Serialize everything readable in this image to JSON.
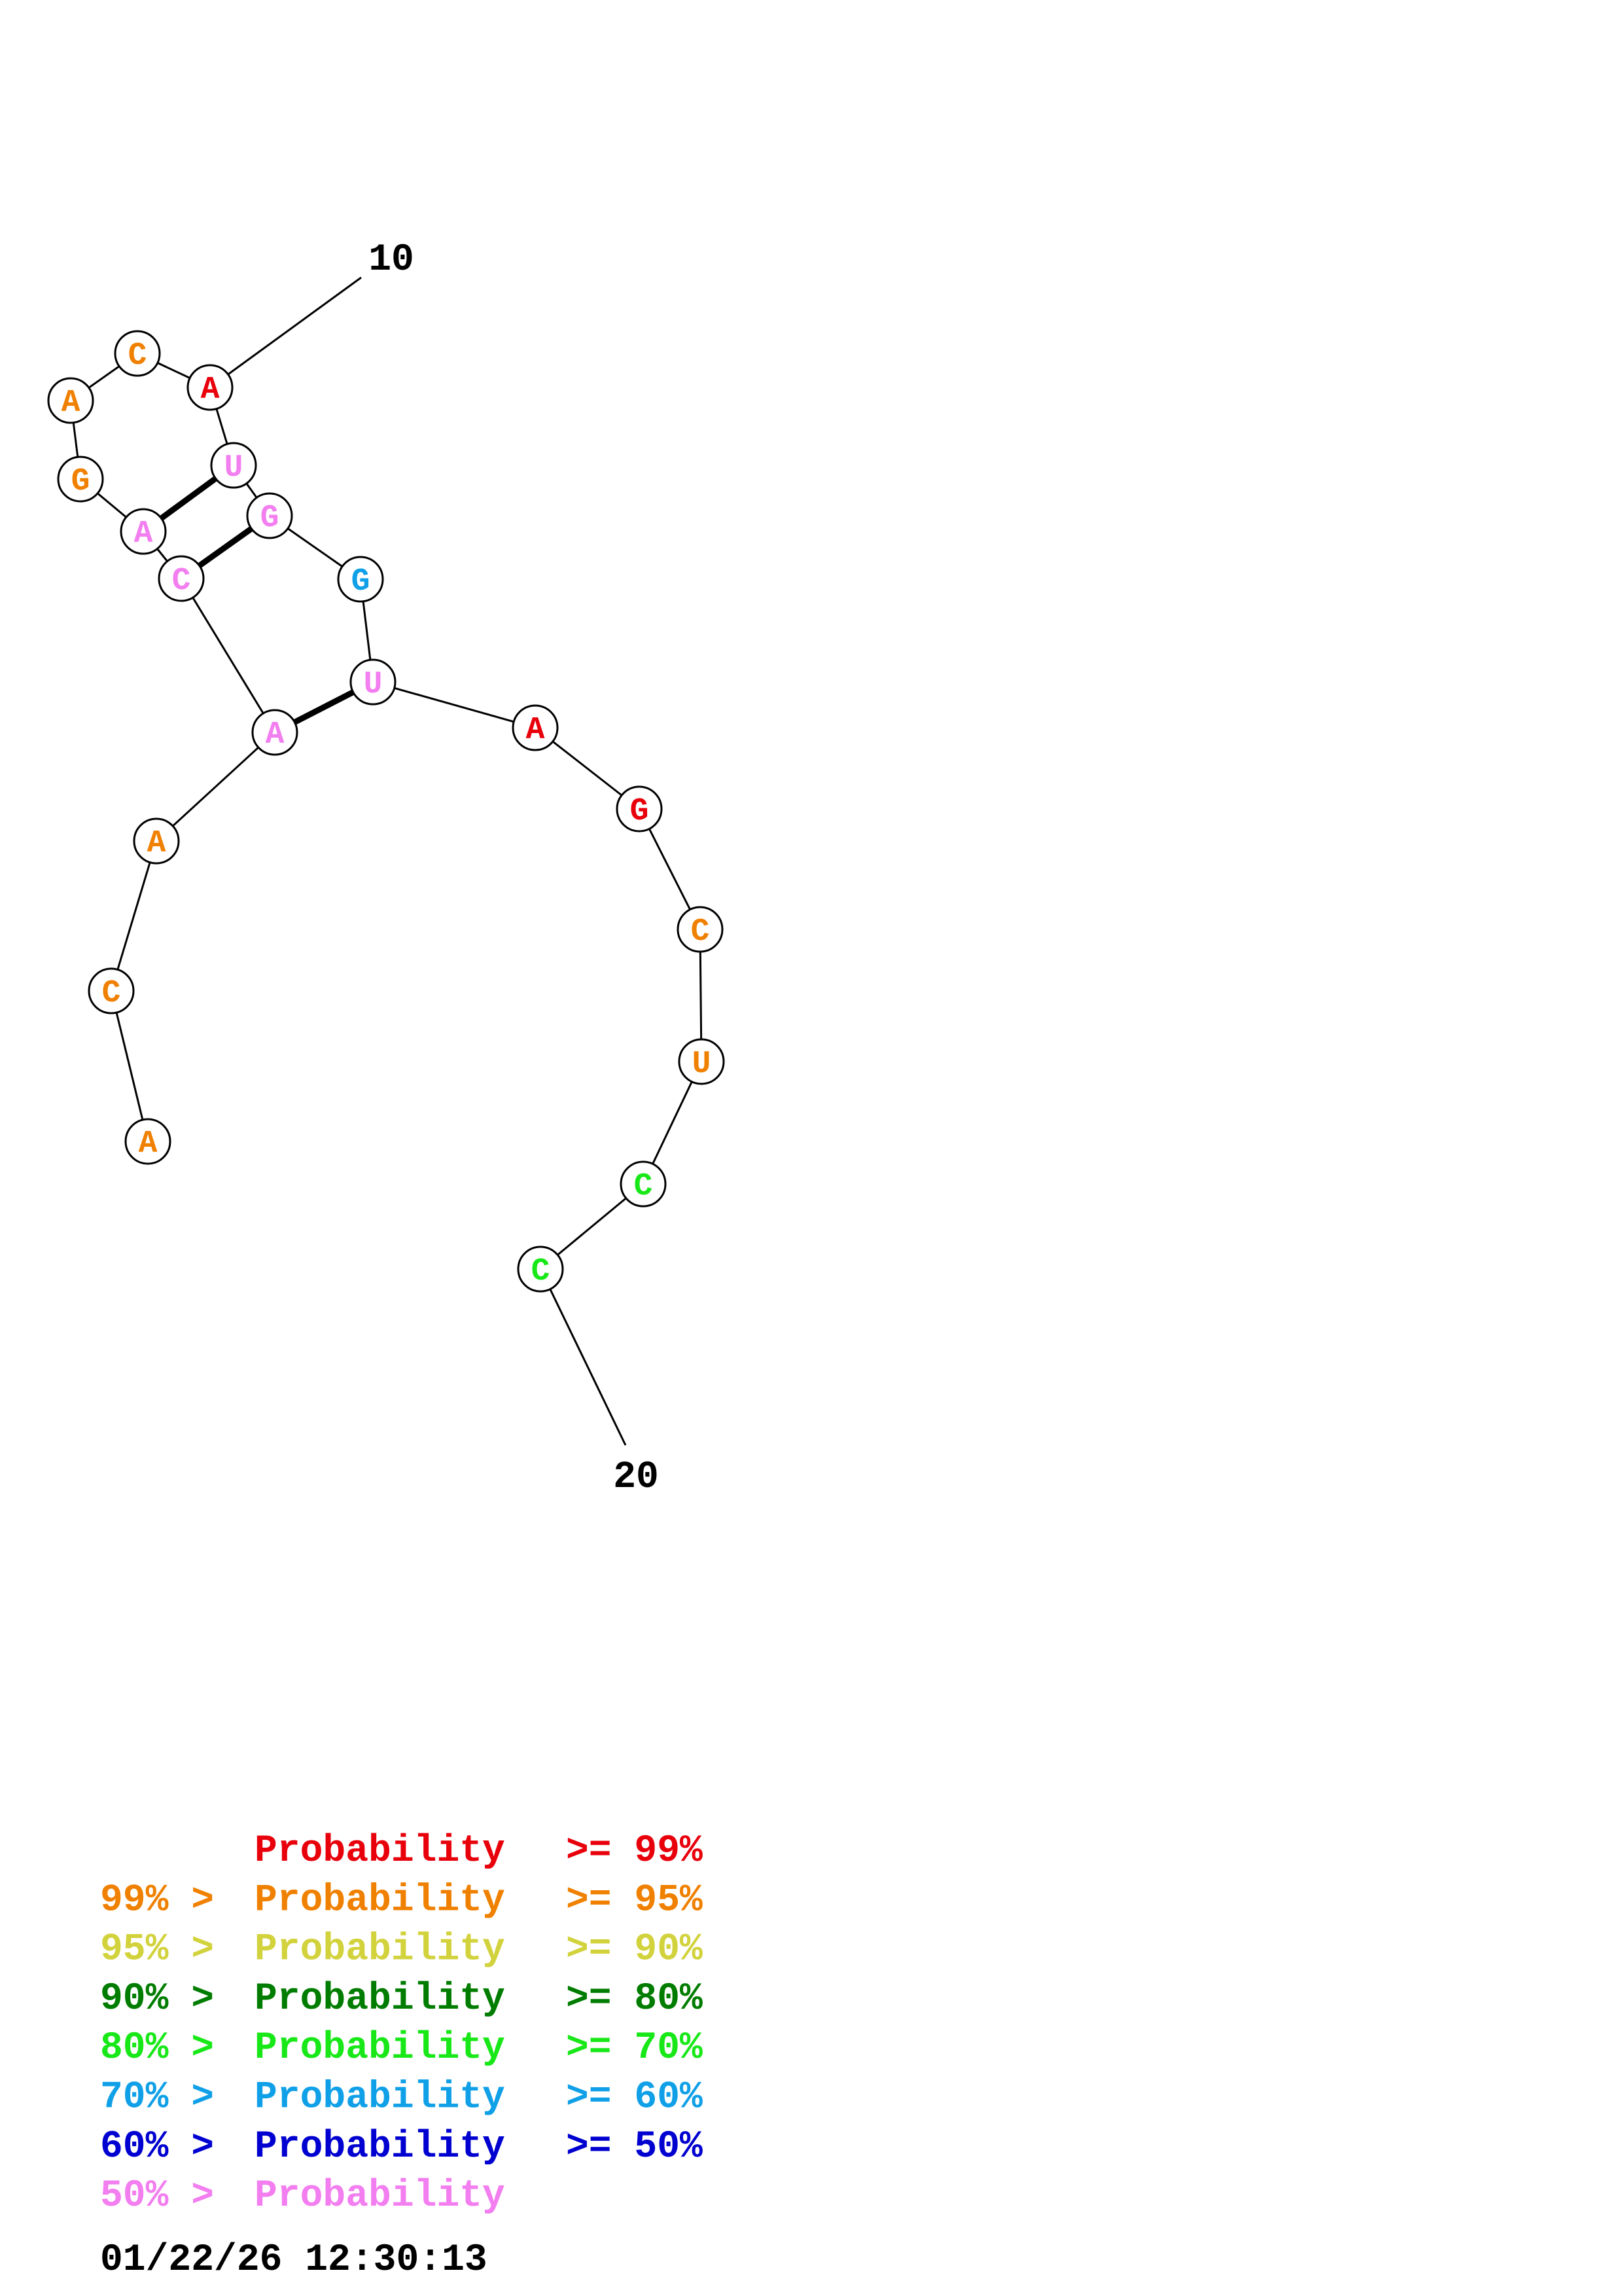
{
  "colors": {
    "p99": "#e8000b",
    "p95": "#f08000",
    "p90": "#d2d23c",
    "p80": "#007d00",
    "p70": "#18e818",
    "p60": "#10a0e8",
    "p50": "#0000d0",
    "plt50": "#f27ef0",
    "black": "#000000"
  },
  "nucleotides": [
    {
      "index": 1,
      "letter": "A",
      "color": "p95"
    },
    {
      "index": 2,
      "letter": "C",
      "color": "p95"
    },
    {
      "index": 3,
      "letter": "A",
      "color": "p95"
    },
    {
      "index": 4,
      "letter": "A",
      "color": "plt50"
    },
    {
      "index": 5,
      "letter": "C",
      "color": "plt50"
    },
    {
      "index": 6,
      "letter": "A",
      "color": "plt50"
    },
    {
      "index": 7,
      "letter": "G",
      "color": "p95"
    },
    {
      "index": 8,
      "letter": "A",
      "color": "p95"
    },
    {
      "index": 9,
      "letter": "C",
      "color": "p95"
    },
    {
      "index": 10,
      "letter": "A",
      "color": "p99"
    },
    {
      "index": 11,
      "letter": "U",
      "color": "plt50"
    },
    {
      "index": 12,
      "letter": "G",
      "color": "plt50"
    },
    {
      "index": 13,
      "letter": "G",
      "color": "p60"
    },
    {
      "index": 14,
      "letter": "U",
      "color": "plt50"
    },
    {
      "index": 15,
      "letter": "A",
      "color": "p99"
    },
    {
      "index": 16,
      "letter": "G",
      "color": "p99"
    },
    {
      "index": 17,
      "letter": "C",
      "color": "p95"
    },
    {
      "index": 18,
      "letter": "U",
      "color": "p95"
    },
    {
      "index": 19,
      "letter": "C",
      "color": "p70"
    },
    {
      "index": 20,
      "letter": "C",
      "color": "p70"
    }
  ],
  "base_pairs": [
    [
      4,
      14
    ],
    [
      5,
      12
    ],
    [
      6,
      11
    ]
  ],
  "index_labels": [
    {
      "text": "10",
      "nucleotide": 10
    },
    {
      "text": "20",
      "nucleotide": 20
    }
  ],
  "legend": [
    {
      "prefix": "",
      "label": "Probability",
      "suffix": ">= 99%",
      "color": "p99"
    },
    {
      "prefix": "99% >",
      "label": "Probability",
      "suffix": ">= 95%",
      "color": "p95"
    },
    {
      "prefix": "95% >",
      "label": "Probability",
      "suffix": ">= 90%",
      "color": "p90"
    },
    {
      "prefix": "90% >",
      "label": "Probability",
      "suffix": ">= 80%",
      "color": "p80"
    },
    {
      "prefix": "80% >",
      "label": "Probability",
      "suffix": ">= 70%",
      "color": "p70"
    },
    {
      "prefix": "70% >",
      "label": "Probability",
      "suffix": ">= 60%",
      "color": "p60"
    },
    {
      "prefix": "60% >",
      "label": "Probability",
      "suffix": ">= 50%",
      "color": "p50"
    },
    {
      "prefix": "50% >",
      "label": "Probability",
      "suffix": "",
      "color": "plt50"
    }
  ],
  "timestamp": "01/22/26 12:30:13"
}
